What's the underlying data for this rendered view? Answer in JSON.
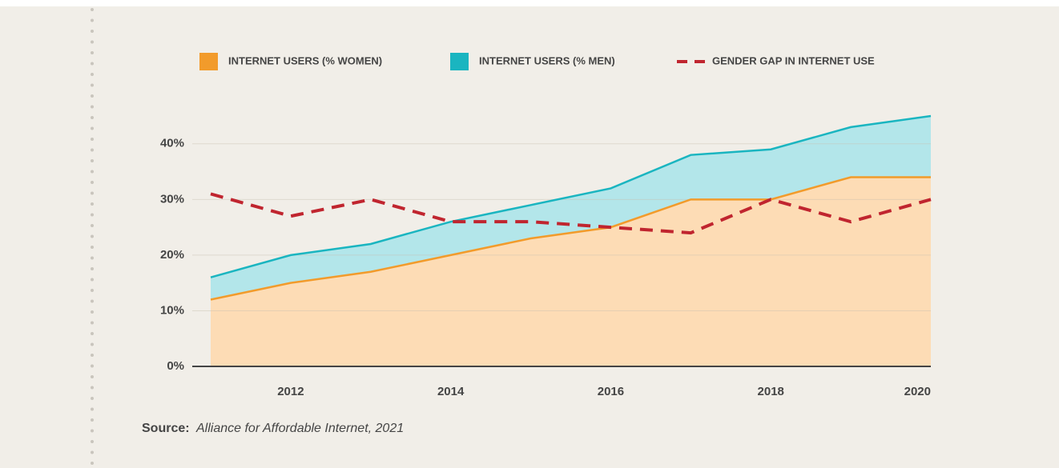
{
  "chart_data": {
    "type": "area-line",
    "x": [
      2011,
      2012,
      2013,
      2014,
      2015,
      2016,
      2017,
      2018,
      2019,
      2020
    ],
    "series": [
      {
        "name": "INTERNET USERS (% WOMEN)",
        "color": "#f29b2b",
        "fill": "#fddcb5",
        "area": true,
        "values": [
          12,
          15,
          17,
          20,
          23,
          25,
          30,
          30,
          34,
          34
        ]
      },
      {
        "name": "INTERNET USERS (% MEN)",
        "color": "#1ab5c0",
        "fill": "#b3e6ea",
        "area": true,
        "values": [
          16,
          20,
          22,
          26,
          29,
          32,
          38,
          39,
          43,
          45
        ]
      },
      {
        "name": "GENDER GAP IN INTERNET USE",
        "color": "#c0252f",
        "dashed": true,
        "values": [
          31,
          27,
          30,
          26,
          26,
          25,
          24,
          30,
          26,
          30
        ]
      }
    ],
    "xlim": [
      2011,
      2020
    ],
    "xticks": [
      2012,
      2014,
      2016,
      2018,
      2020
    ],
    "ylim": [
      0,
      45
    ],
    "yticks": [
      {
        "value": 0,
        "label": "0%"
      },
      {
        "value": 10,
        "label": "10%"
      },
      {
        "value": 20,
        "label": "20%"
      },
      {
        "value": 30,
        "label": "30%"
      },
      {
        "value": 40,
        "label": "40%"
      }
    ],
    "grid": true,
    "legend": "top",
    "source_label": "Source:",
    "source": "Alliance for Affordable Internet, 2021"
  }
}
